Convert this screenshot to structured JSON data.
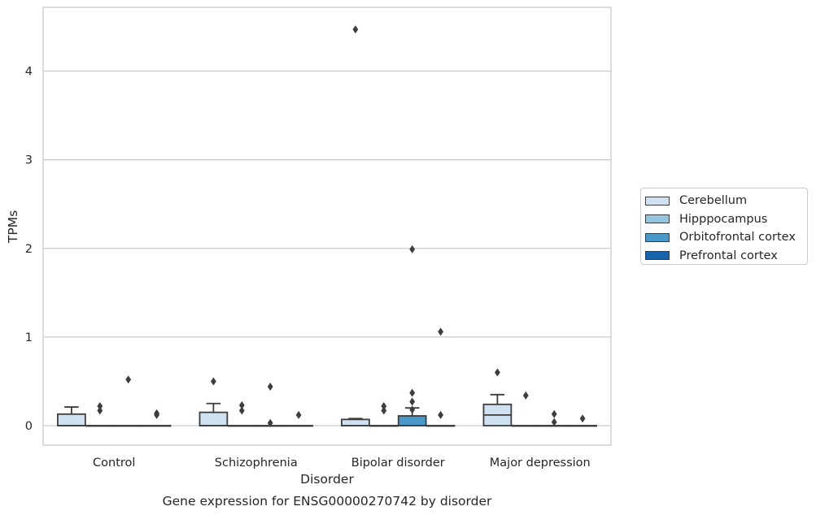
{
  "chart_data": {
    "type": "box",
    "caption": "Gene expression for ENSG00000270742 by disorder",
    "xlabel": "Disorder",
    "ylabel": "TPMs",
    "ylim": [
      -0.22,
      4.72
    ],
    "yticks": [
      0,
      1,
      2,
      3,
      4
    ],
    "grid": true,
    "legend_position": "right",
    "categories": [
      "Control",
      "Schizophrenia",
      "Bipolar disorder",
      "Major depression"
    ],
    "series": [
      {
        "name": "Cerebellum",
        "color": "#d0e1f2",
        "boxes": [
          {
            "q1": 0.0,
            "median": 0.0,
            "q3": 0.13,
            "whisker_low": 0.0,
            "whisker_high": 0.21,
            "outliers": []
          },
          {
            "q1": 0.0,
            "median": 0.0,
            "q3": 0.15,
            "whisker_low": 0.0,
            "whisker_high": 0.25,
            "outliers": [
              0.5
            ]
          },
          {
            "q1": 0.0,
            "median": 0.0,
            "q3": 0.07,
            "whisker_low": 0.0,
            "whisker_high": 0.08,
            "outliers": [
              4.47
            ]
          },
          {
            "q1": 0.0,
            "median": 0.12,
            "q3": 0.24,
            "whisker_low": 0.0,
            "whisker_high": 0.35,
            "outliers": [
              0.6
            ]
          }
        ]
      },
      {
        "name": "Hipppocampus",
        "color": "#94c4df",
        "boxes": [
          {
            "q1": 0.0,
            "median": 0.0,
            "q3": 0.0,
            "whisker_low": 0.0,
            "whisker_high": 0.0,
            "outliers": [
              0.17,
              0.22
            ]
          },
          {
            "q1": 0.0,
            "median": 0.0,
            "q3": 0.0,
            "whisker_low": 0.0,
            "whisker_high": 0.0,
            "outliers": [
              0.17,
              0.23
            ]
          },
          {
            "q1": 0.0,
            "median": 0.0,
            "q3": 0.0,
            "whisker_low": 0.0,
            "whisker_high": 0.0,
            "outliers": [
              0.17,
              0.22
            ]
          },
          {
            "q1": 0.0,
            "median": 0.0,
            "q3": 0.0,
            "whisker_low": 0.0,
            "whisker_high": 0.0,
            "outliers": [
              0.34
            ]
          }
        ]
      },
      {
        "name": "Orbitofrontal cortex",
        "color": "#4a98c9",
        "boxes": [
          {
            "q1": 0.0,
            "median": 0.0,
            "q3": 0.0,
            "whisker_low": 0.0,
            "whisker_high": 0.0,
            "outliers": [
              0.52
            ]
          },
          {
            "q1": 0.0,
            "median": 0.0,
            "q3": 0.0,
            "whisker_low": 0.0,
            "whisker_high": 0.0,
            "outliers": [
              0.03,
              0.44
            ]
          },
          {
            "q1": 0.0,
            "median": 0.0,
            "q3": 0.11,
            "whisker_low": 0.0,
            "whisker_high": 0.2,
            "outliers": [
              0.18,
              0.27,
              0.37,
              1.99
            ]
          },
          {
            "q1": 0.0,
            "median": 0.0,
            "q3": 0.0,
            "whisker_low": 0.0,
            "whisker_high": 0.0,
            "outliers": [
              0.04,
              0.13
            ]
          }
        ]
      },
      {
        "name": "Prefrontal cortex",
        "color": "#1764ab",
        "boxes": [
          {
            "q1": 0.0,
            "median": 0.0,
            "q3": 0.0,
            "whisker_low": 0.0,
            "whisker_high": 0.0,
            "outliers": [
              0.12,
              0.14
            ]
          },
          {
            "q1": 0.0,
            "median": 0.0,
            "q3": 0.0,
            "whisker_low": 0.0,
            "whisker_high": 0.0,
            "outliers": [
              0.12
            ]
          },
          {
            "q1": 0.0,
            "median": 0.0,
            "q3": 0.0,
            "whisker_low": 0.0,
            "whisker_high": 0.0,
            "outliers": [
              0.12,
              1.06
            ]
          },
          {
            "q1": 0.0,
            "median": 0.0,
            "q3": 0.0,
            "whisker_low": 0.0,
            "whisker_high": 0.0,
            "outliers": [
              0.08
            ]
          }
        ]
      }
    ]
  }
}
